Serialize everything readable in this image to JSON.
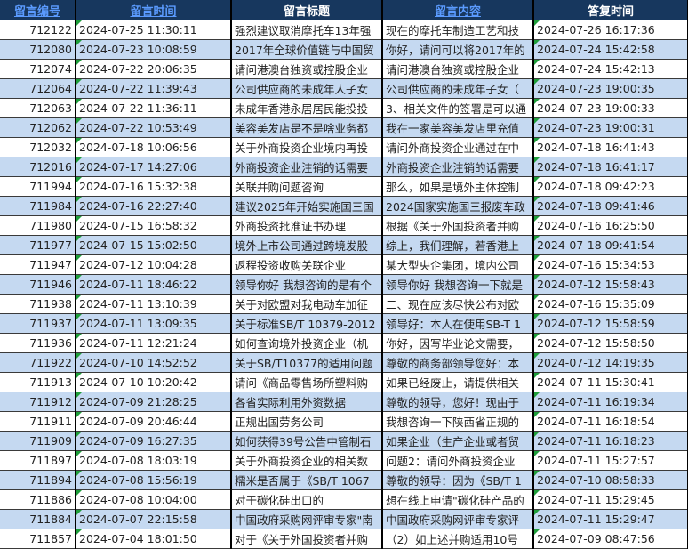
{
  "headers": [
    "留言编号",
    "留言时间",
    "留言标题",
    "留言内容",
    "答复时间"
  ],
  "rows": [
    [
      "712122",
      "2024-07-25 11:30:11",
      "强烈建议取消摩托车13年强",
      "现在的摩托车制造工艺和技",
      "2024-07-26 16:17:36"
    ],
    [
      "712080",
      "2024-07-23 10:08:59",
      "2017年全球价值链与中国贸",
      "你好，请问可以将2017年的",
      "2024-07-24 15:42:58"
    ],
    [
      "712074",
      "2024-07-22 20:06:35",
      "请问港澳台独资或控股企业",
      "请问港澳台独资或控股企业",
      "2024-07-24 15:42:13"
    ],
    [
      "712064",
      "2024-07-22 11:39:43",
      "公司供应商的未成年人子女",
      "公司供应商的未成年子女（",
      "2024-07-23 19:00:35"
    ],
    [
      "712063",
      "2024-07-22 11:36:11",
      "未成年香港永居居民能投投",
      "3、相关文件的签署是可以通",
      "2024-07-23 19:00:33"
    ],
    [
      "712062",
      "2024-07-22 10:53:49",
      "美容美发店是不是啥业务都",
      "我在一家美容美发店里充值",
      "2024-07-23 19:00:31"
    ],
    [
      "712032",
      "2024-07-18 10:06:56",
      "关于外商投资企业境内再投",
      "请问外商投资企业通过在中",
      "2024-07-18 16:41:43"
    ],
    [
      "712016",
      "2024-07-17 14:27:06",
      "外商投资企业注销的话需要",
      "外商投资企业注销的话需要",
      "2024-07-18 16:41:17"
    ],
    [
      "711994",
      "2024-07-16 15:32:38",
      "关联并购问题咨询",
      "那么，如果是境外主体控制",
      "2024-07-18 09:42:23"
    ],
    [
      "711984",
      "2024-07-16 22:27:40",
      "建议2025年开始实施国三国",
      "2024国家实施国三报废车政",
      "2024-07-18 09:41:46"
    ],
    [
      "711980",
      "2024-07-15 16:58:32",
      "外商投资批准证书办理",
      "根据《关于外国投资者并购",
      "2024-07-16 16:25:50"
    ],
    [
      "711977",
      "2024-07-15 15:02:50",
      "境外上市公司通过跨境发股",
      "综上，我们理解，若香港上",
      "2024-07-18 09:41:54"
    ],
    [
      "711947",
      "2024-07-12 10:04:28",
      "返程投资收购关联企业",
      "某大型央企集团，境内公司",
      "2024-07-16 15:34:53"
    ],
    [
      "711946",
      "2024-07-11 18:46:22",
      "领导你好 我想咨询的是有个",
      "领导你好 我想咨询一下就是",
      "2024-07-12 15:58:43"
    ],
    [
      "711938",
      "2024-07-11 13:10:39",
      "关于对欧盟对我电动车加征",
      "二、现在应该尽快公布对欧",
      "2024-07-16 15:35:09"
    ],
    [
      "711937",
      "2024-07-11 13:09:35",
      "关于标准SB/T 10379-2012",
      "领导好：本人在使用SB-T 1",
      "2024-07-12 15:58:59"
    ],
    [
      "711936",
      "2024-07-11 12:21:24",
      "如何查询境外投资企业（机",
      "你好，因写毕业论文需要，",
      "2024-07-12 15:58:50"
    ],
    [
      "711922",
      "2024-07-10 14:52:52",
      "关于SB/T10377的适用问题",
      "尊敬的商务部领导您好：本",
      "2024-07-12 14:19:35"
    ],
    [
      "711913",
      "2024-07-10 10:20:42",
      "请问《商品零售场所塑料购",
      "如果已经废止，请提供相关",
      "2024-07-11 15:30:41"
    ],
    [
      "711912",
      "2024-07-09 21:28:25",
      "各省实际利用外资数据",
      "尊敬的领导，您好！现由于",
      "2024-07-11 16:19:34"
    ],
    [
      "711911",
      "2024-07-09 20:46:44",
      "正规出国劳务公司",
      "我想咨询一下陕西省正规的",
      "2024-07-11 16:18:54"
    ],
    [
      "711909",
      "2024-07-09 16:27:35",
      "如何获得39号公告中管制石",
      "如果企业（生产企业或者贸",
      "2024-07-11 16:18:23"
    ],
    [
      "711897",
      "2024-07-08 18:03:19",
      "关于外商投资企业的相关数",
      "问题2：请问外商投资企业",
      "2024-07-11 15:27:57"
    ],
    [
      "711894",
      "2024-07-08 15:56:19",
      "糯米是否属于《SB/T 1067",
      "尊敬的领导：因为《SB/T 1",
      "2024-07-10 08:58:33"
    ],
    [
      "711886",
      "2024-07-08 10:04:00",
      "对于碳化硅出口的",
      "想在线上申请\"碳化硅产品的",
      "2024-07-11 15:29:45"
    ],
    [
      "711884",
      "2024-07-07 22:15:58",
      "中国政府采购网评审专家\"南",
      "中国政府采购网评审专家评",
      "2024-07-11 15:29:47"
    ],
    [
      "711857",
      "2024-07-04 18:01:50",
      "对于《关于外国投资者并购",
      "（2）如上述并购适用10号",
      "2024-07-09 08:47:56"
    ]
  ],
  "colors": {
    "header_bg": "#17375e",
    "stripe": "#c5d9f1",
    "link": "#5b9bff",
    "error_triangle": "#1e9e3a"
  }
}
